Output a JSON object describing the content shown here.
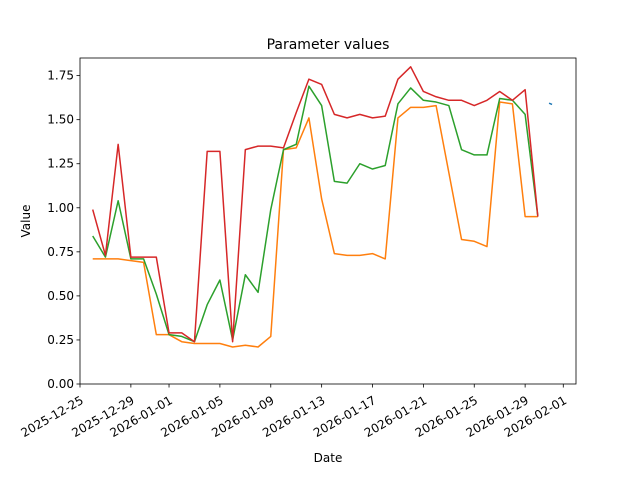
{
  "chart_data": {
    "type": "line",
    "title": "Parameter values",
    "xlabel": "Date",
    "ylabel": "Value",
    "xlim": [
      "2025-12-25",
      "2026-02-02"
    ],
    "ylim": [
      0,
      1.85
    ],
    "grid": false,
    "legend": "none",
    "x_ticks": [
      "2025-12-25",
      "2025-12-29",
      "2026-01-01",
      "2026-01-05",
      "2026-01-09",
      "2026-01-13",
      "2026-01-17",
      "2026-01-21",
      "2026-01-25",
      "2026-01-29",
      "2026-02-01"
    ],
    "y_ticks": [
      "0.00",
      "0.25",
      "0.50",
      "0.75",
      "1.00",
      "1.25",
      "1.50",
      "1.75"
    ],
    "x": [
      "2025-12-26",
      "2025-12-27",
      "2025-12-28",
      "2025-12-29",
      "2025-12-30",
      "2025-12-31",
      "2026-01-01",
      "2026-01-02",
      "2026-01-03",
      "2026-01-04",
      "2026-01-05",
      "2026-01-06",
      "2026-01-07",
      "2026-01-08",
      "2026-01-09",
      "2026-01-10",
      "2026-01-11",
      "2026-01-12",
      "2026-01-13",
      "2026-01-14",
      "2026-01-15",
      "2026-01-16",
      "2026-01-17",
      "2026-01-18",
      "2026-01-19",
      "2026-01-20",
      "2026-01-21",
      "2026-01-22",
      "2026-01-23",
      "2026-01-24",
      "2026-01-25",
      "2026-01-26",
      "2026-01-27",
      "2026-01-28",
      "2026-01-29",
      "2026-01-30"
    ],
    "series": [
      {
        "color": "#1f77b4",
        "x": [
          "2026-01-31"
        ],
        "values": [
          1.59
        ]
      },
      {
        "color": "#ff7f0e",
        "values": [
          0.71,
          0.71,
          0.71,
          0.7,
          0.69,
          0.28,
          0.28,
          0.24,
          0.23,
          0.23,
          0.23,
          0.21,
          0.22,
          0.21,
          0.27,
          1.33,
          1.34,
          1.51,
          1.05,
          0.74,
          0.73,
          0.73,
          0.74,
          0.71,
          1.51,
          1.57,
          1.57,
          1.58,
          1.2,
          0.82,
          0.81,
          0.78,
          1.6,
          1.59,
          0.95,
          0.95
        ]
      },
      {
        "color": "#2ca02c",
        "values": [
          0.84,
          0.72,
          1.04,
          0.71,
          0.71,
          0.51,
          0.28,
          0.27,
          0.24,
          0.45,
          0.59,
          0.25,
          0.62,
          0.52,
          0.99,
          1.33,
          1.36,
          1.69,
          1.58,
          1.15,
          1.14,
          1.25,
          1.22,
          1.24,
          1.59,
          1.68,
          1.61,
          1.6,
          1.58,
          1.33,
          1.3,
          1.3,
          1.62,
          1.61,
          1.53,
          0.95
        ]
      },
      {
        "color": "#d62728",
        "values": [
          0.99,
          0.73,
          1.36,
          0.72,
          0.72,
          0.72,
          0.29,
          0.29,
          0.24,
          1.32,
          1.32,
          0.24,
          1.33,
          1.35,
          1.35,
          1.34,
          1.54,
          1.73,
          1.7,
          1.53,
          1.51,
          1.53,
          1.51,
          1.52,
          1.73,
          1.8,
          1.66,
          1.63,
          1.61,
          1.61,
          1.58,
          1.61,
          1.66,
          1.61,
          1.67,
          0.95
        ]
      }
    ]
  }
}
